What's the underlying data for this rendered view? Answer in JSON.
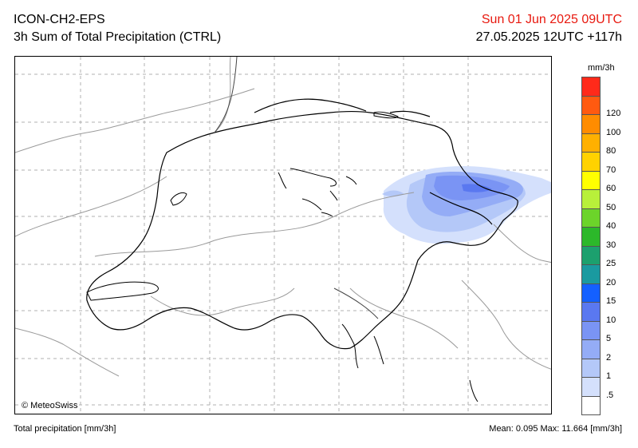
{
  "header": {
    "model": "ICON-CH2-EPS",
    "product": "3h Sum of Total Precipitation (CTRL)",
    "valid_time": "Sun 01 Jun 2025 09UTC",
    "run_time": "27.05.2025 12UTC +117h",
    "valid_time_color": "#e8190f"
  },
  "map": {
    "copyright": "© MeteoSwiss"
  },
  "legend": {
    "unit": "mm/3h",
    "levels": [
      {
        "label": "",
        "color": "#ff2a1a"
      },
      {
        "label": "120",
        "color": "#ff5a10"
      },
      {
        "label": "100",
        "color": "#ff8c00"
      },
      {
        "label": "80",
        "color": "#ffb000"
      },
      {
        "label": "70",
        "color": "#ffd200"
      },
      {
        "label": "60",
        "color": "#ffff00"
      },
      {
        "label": "50",
        "color": "#b8f03a"
      },
      {
        "label": "40",
        "color": "#6cd42a"
      },
      {
        "label": "30",
        "color": "#2cb82a"
      },
      {
        "label": "25",
        "color": "#1ca06e"
      },
      {
        "label": "20",
        "color": "#1a9aa0"
      },
      {
        "label": "15",
        "color": "#1460ff"
      },
      {
        "label": "10",
        "color": "#5a78f0"
      },
      {
        "label": "5",
        "color": "#7a94f4"
      },
      {
        "label": "2",
        "color": "#94acf6"
      },
      {
        "label": "1",
        "color": "#b4c8f8"
      },
      {
        "label": ".5",
        "color": "#d4e0fc"
      },
      {
        "label": "",
        "color": "#ffffff"
      }
    ]
  },
  "footer": {
    "left": "Total precipitation [mm/3h]",
    "right": "Mean:  0.095 Max:  11.664 [mm/3h]"
  }
}
